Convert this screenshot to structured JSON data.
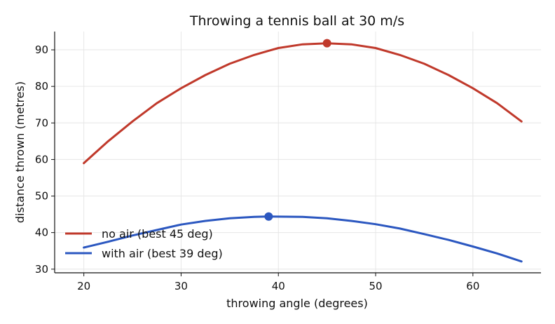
{
  "chart_data": {
    "type": "line",
    "title": "Throwing a tennis ball at 30 m/s",
    "xlabel": "throwing angle (degrees)",
    "ylabel": "distance thrown (metres)",
    "xlim": [
      17,
      67
    ],
    "ylim": [
      29,
      95
    ],
    "xticks": [
      20,
      30,
      40,
      50,
      60
    ],
    "yticks": [
      30,
      40,
      50,
      60,
      70,
      80,
      90
    ],
    "grid": true,
    "legend_position": "lower-left",
    "series": [
      {
        "name": "no air (best 45 deg)",
        "color": "#c0392b",
        "x": [
          20,
          22.5,
          25,
          27.5,
          30,
          32.5,
          35,
          37.5,
          40,
          42.5,
          45,
          47.5,
          50,
          52.5,
          55,
          57.5,
          60,
          62.5,
          65
        ],
        "y": [
          59.0,
          65.0,
          70.4,
          75.4,
          79.5,
          83.1,
          86.2,
          88.6,
          90.5,
          91.5,
          91.8,
          91.5,
          90.5,
          88.6,
          86.2,
          83.1,
          79.5,
          75.4,
          70.4
        ],
        "optimum": {
          "x": 45,
          "y": 91.8
        }
      },
      {
        "name": "with air (best 39 deg)",
        "color": "#2b57c0",
        "x": [
          20,
          22.5,
          25,
          27.5,
          30,
          32.5,
          35,
          37.5,
          39,
          42.5,
          45,
          47.5,
          50,
          52.5,
          55,
          57.5,
          60,
          62.5,
          65
        ],
        "y": [
          35.9,
          37.5,
          39.2,
          40.7,
          42.2,
          43.2,
          43.9,
          44.3,
          44.4,
          44.3,
          43.9,
          43.2,
          42.3,
          41.1,
          39.6,
          38.0,
          36.2,
          34.3,
          32.1
        ],
        "optimum": {
          "x": 39,
          "y": 44.4
        }
      }
    ]
  }
}
